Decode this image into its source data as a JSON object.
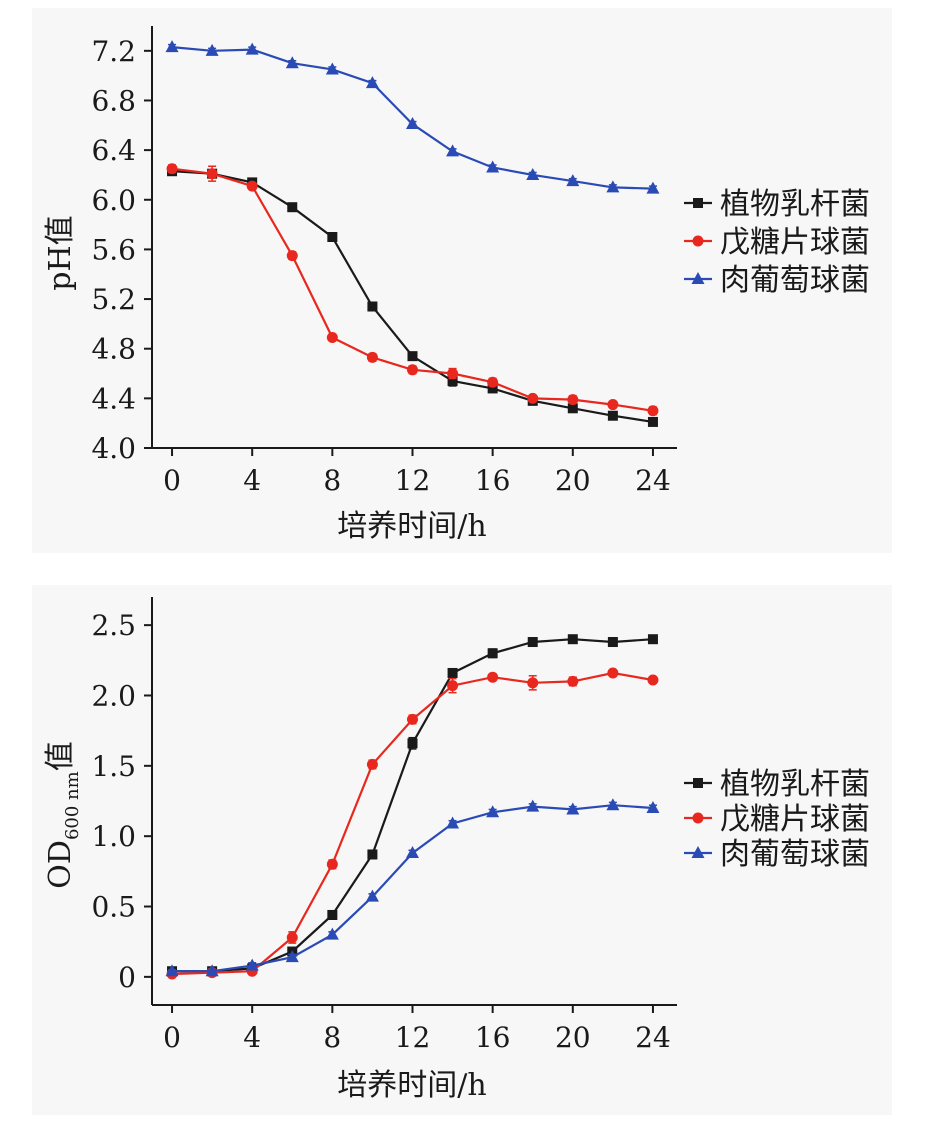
{
  "chart_data": [
    {
      "type": "line",
      "id": "ph",
      "title": "",
      "xlabel": "培养时间/h",
      "ylabel": "pH值",
      "xlim": [
        -1,
        25.2
      ],
      "ylim": [
        4.0,
        7.4
      ],
      "xticks": [
        0,
        4,
        8,
        12,
        16,
        20,
        24
      ],
      "xtick_labels": [
        "0",
        "4",
        "8",
        "12",
        "16",
        "20",
        "24"
      ],
      "yticks": [
        4.0,
        4.4,
        4.8,
        5.2,
        5.6,
        6.0,
        6.4,
        6.8,
        7.2
      ],
      "ytick_labels": [
        "4.0",
        "4.4",
        "4.8",
        "5.2",
        "5.6",
        "6.0",
        "6.4",
        "6.8",
        "7.2"
      ],
      "x": [
        0,
        2,
        4,
        6,
        8,
        10,
        12,
        14,
        16,
        18,
        20,
        22,
        24
      ],
      "legend_position": "right",
      "series": [
        {
          "name": "植物乳杆菌",
          "color": "#1a1a1a",
          "marker": "square",
          "values": [
            6.23,
            6.21,
            6.14,
            5.94,
            5.7,
            5.14,
            4.74,
            4.54,
            4.48,
            4.38,
            4.32,
            4.26,
            4.21
          ],
          "errors": [
            0.02,
            0.03,
            0.02,
            0.02,
            0.02,
            0.03,
            0.03,
            0.04,
            0.02,
            0.02,
            0.02,
            0.02,
            0.02
          ]
        },
        {
          "name": "戊糖片球菌",
          "color": "#e8281e",
          "marker": "circle",
          "values": [
            6.25,
            6.21,
            6.11,
            5.55,
            4.89,
            4.73,
            4.63,
            4.6,
            4.53,
            4.4,
            4.39,
            4.35,
            4.3
          ],
          "errors": [
            0.03,
            0.06,
            0.02,
            0.03,
            0.02,
            0.03,
            0.03,
            0.04,
            0.03,
            0.02,
            0.03,
            0.02,
            0.03
          ]
        },
        {
          "name": "肉葡萄球菌",
          "color": "#2a4bb5",
          "marker": "triangle",
          "values": [
            7.23,
            7.2,
            7.21,
            7.1,
            7.05,
            6.94,
            6.61,
            6.39,
            6.26,
            6.2,
            6.15,
            6.1,
            6.09
          ],
          "errors": [
            0.02,
            0.02,
            0.02,
            0.02,
            0.02,
            0.02,
            0.02,
            0.02,
            0.02,
            0.02,
            0.02,
            0.02,
            0.02
          ]
        }
      ]
    },
    {
      "type": "line",
      "id": "od",
      "title": "",
      "xlabel": "培养时间/h",
      "ylabel": "OD",
      "ylabel_sub": "600 nm",
      "ylabel_suffix": "值",
      "xlim": [
        -1,
        25.2
      ],
      "ylim": [
        -0.2,
        2.7
      ],
      "xticks": [
        0,
        4,
        8,
        12,
        16,
        20,
        24
      ],
      "xtick_labels": [
        "0",
        "4",
        "8",
        "12",
        "16",
        "20",
        "24"
      ],
      "yticks": [
        0,
        0.5,
        1.0,
        1.5,
        2.0,
        2.5
      ],
      "ytick_labels": [
        "0",
        "0.5",
        "1.0",
        "1.5",
        "2.0",
        "2.5"
      ],
      "x": [
        0,
        2,
        4,
        6,
        8,
        10,
        12,
        14,
        16,
        18,
        20,
        22,
        24
      ],
      "legend_position": "right",
      "series": [
        {
          "name": "植物乳杆菌",
          "color": "#1a1a1a",
          "marker": "square",
          "values": [
            0.04,
            0.04,
            0.06,
            0.18,
            0.44,
            0.87,
            1.66,
            2.16,
            2.3,
            2.38,
            2.4,
            2.38,
            2.4
          ],
          "errors": [
            0.01,
            0.01,
            0.01,
            0.02,
            0.03,
            0.03,
            0.04,
            0.03,
            0.03,
            0.02,
            0.02,
            0.03,
            0.02
          ]
        },
        {
          "name": "戊糖片球菌",
          "color": "#e8281e",
          "marker": "circle",
          "values": [
            0.02,
            0.03,
            0.04,
            0.28,
            0.8,
            1.51,
            1.83,
            2.07,
            2.13,
            2.09,
            2.1,
            2.16,
            2.11
          ],
          "errors": [
            0.01,
            0.01,
            0.01,
            0.04,
            0.03,
            0.03,
            0.03,
            0.05,
            0.02,
            0.05,
            0.03,
            0.02,
            0.02
          ]
        },
        {
          "name": "肉葡萄球菌",
          "color": "#2a4bb5",
          "marker": "triangle",
          "values": [
            0.04,
            0.04,
            0.08,
            0.14,
            0.3,
            0.57,
            0.88,
            1.09,
            1.17,
            1.21,
            1.19,
            1.22,
            1.2
          ],
          "errors": [
            0.01,
            0.01,
            0.02,
            0.02,
            0.02,
            0.02,
            0.02,
            0.02,
            0.02,
            0.02,
            0.02,
            0.02,
            0.02
          ]
        }
      ]
    }
  ]
}
